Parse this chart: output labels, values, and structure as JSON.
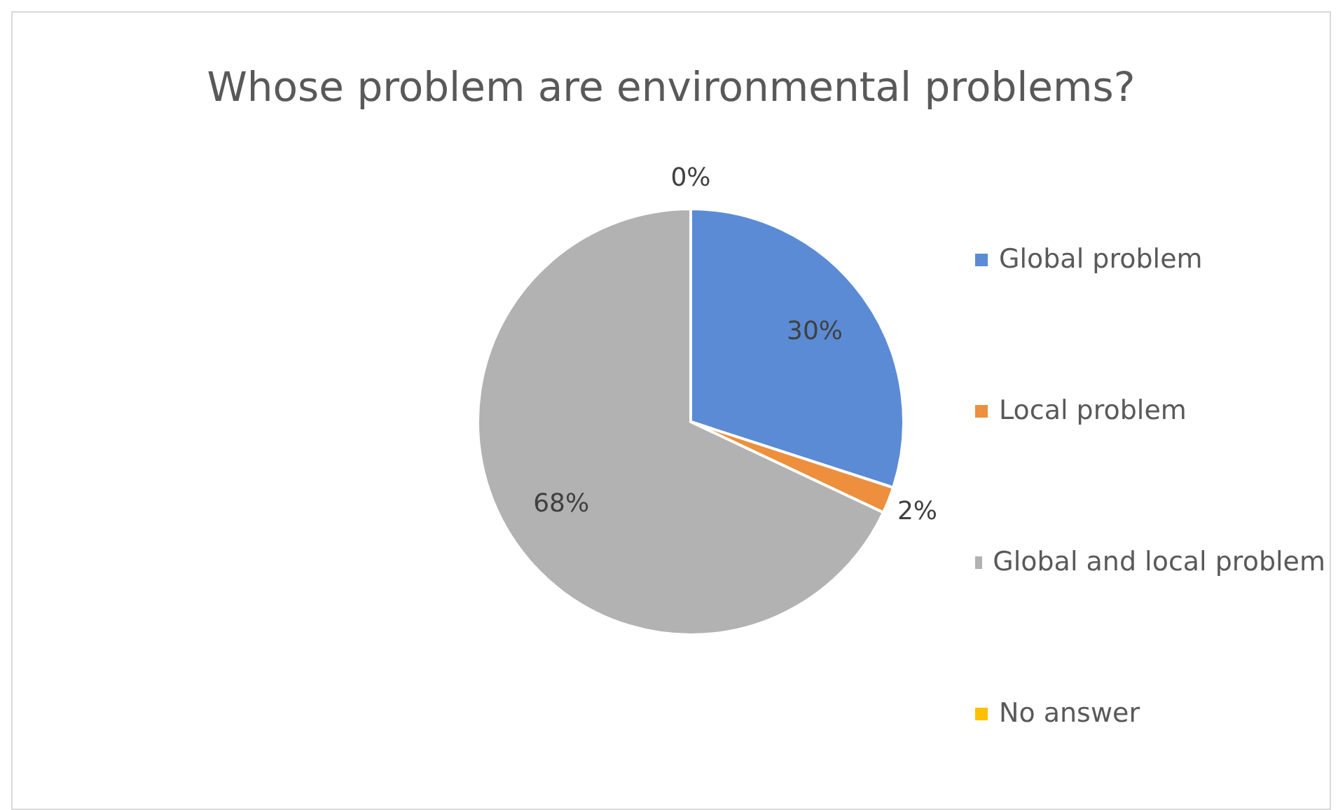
{
  "chart_data": {
    "type": "pie",
    "title": "Whose problem are environmental problems?",
    "categories": [
      "Global problem",
      "Local problem",
      "Global and local problem",
      "No answer"
    ],
    "values": [
      30,
      2,
      68,
      0
    ],
    "colors": [
      "#5b8bd5",
      "#ed8f3c",
      "#b2b2b2",
      "#ffc000"
    ],
    "value_labels": [
      "30%",
      "2%",
      "68%",
      "0%"
    ],
    "legend": "right"
  }
}
